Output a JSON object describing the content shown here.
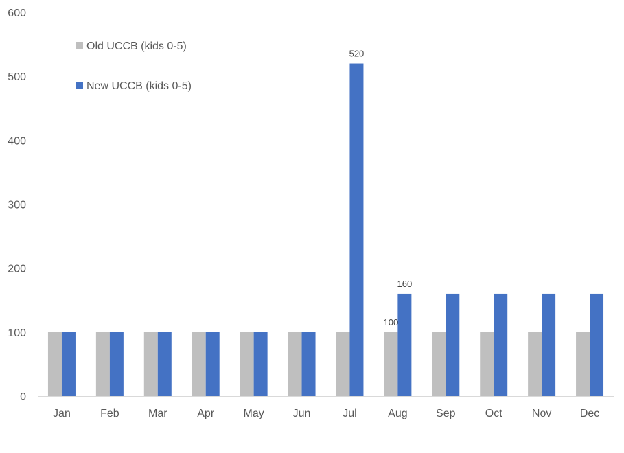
{
  "chart_data": {
    "type": "bar",
    "title": "",
    "xlabel": "",
    "ylabel": "",
    "categories": [
      "Jan",
      "Feb",
      "Mar",
      "Apr",
      "May",
      "Jun",
      "Jul",
      "Aug",
      "Sep",
      "Oct",
      "Nov",
      "Dec"
    ],
    "series": [
      {
        "name": "Old UCCB (kids 0-5)",
        "color": "#bfbfbf",
        "values": [
          100,
          100,
          100,
          100,
          100,
          100,
          100,
          100,
          100,
          100,
          100,
          100
        ]
      },
      {
        "name": "New UCCB (kids 0-5)",
        "color": "#4472c4",
        "values": [
          100,
          100,
          100,
          100,
          100,
          100,
          520,
          160,
          160,
          160,
          160,
          160
        ]
      }
    ],
    "ylim": [
      0,
      600
    ],
    "yticks": [
      0,
      100,
      200,
      300,
      400,
      500,
      600
    ],
    "grid": false,
    "legend_position": "top-left",
    "data_labels": [
      {
        "series": 1,
        "category": "Jul",
        "text": "520"
      },
      {
        "series": 0,
        "category": "Aug",
        "text": "100"
      },
      {
        "series": 1,
        "category": "Aug",
        "text": "160"
      }
    ]
  }
}
